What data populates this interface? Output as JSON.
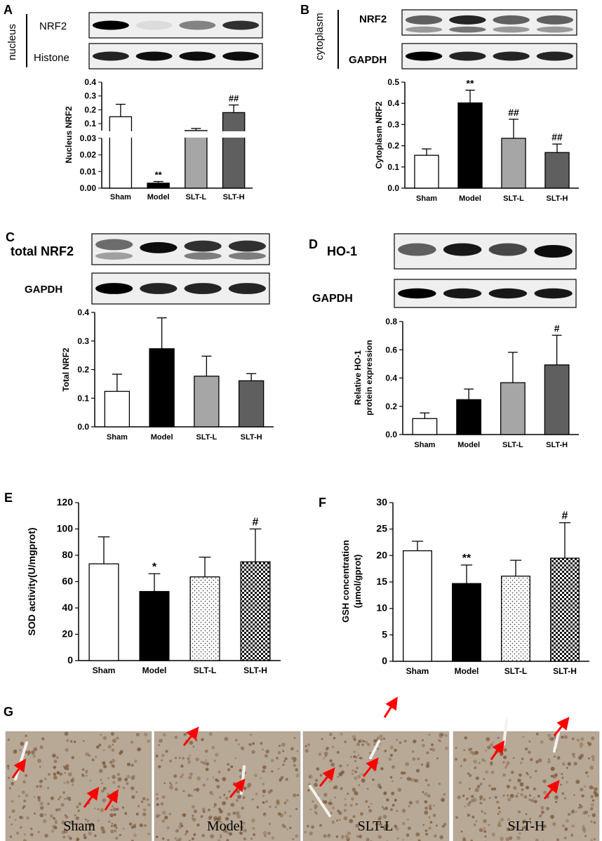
{
  "panels": {
    "A": {
      "letter": "A",
      "blot_side": "nucleus",
      "blot_labels": [
        "NRF2",
        "Histone"
      ],
      "chart_data": {
        "type": "bar",
        "categories": [
          "Sham",
          "Model",
          "SLT-L",
          "SLT-H"
        ],
        "values": [
          0.15,
          0.003,
          0.05,
          0.18
        ],
        "errors": [
          0.09,
          0.001,
          0.015,
          0.055
        ],
        "ylabel": "Nucleus NRF2",
        "axis_break": {
          "lower_ticks": [
            "0.00",
            "0.01",
            "0.02",
            "0.03"
          ],
          "upper_ticks": [
            "0.1",
            "0.2",
            "0.3",
            "0.4"
          ]
        },
        "annotations": [
          "",
          "**",
          "",
          "##"
        ]
      }
    },
    "B": {
      "letter": "B",
      "blot_side": "cytoplasm",
      "blot_labels": [
        "NRF2",
        "GAPDH"
      ],
      "chart_data": {
        "type": "bar",
        "categories": [
          "Sham",
          "Model",
          "SLT-L",
          "SLT-H"
        ],
        "values": [
          0.155,
          0.402,
          0.235,
          0.168
        ],
        "errors": [
          0.03,
          0.06,
          0.09,
          0.04
        ],
        "ylabel": "Cytoplasm NRF2",
        "ylim": [
          0,
          0.5
        ],
        "yticks": [
          "0.0",
          "0.1",
          "0.2",
          "0.3",
          "0.4",
          "0.5"
        ],
        "annotations": [
          "",
          "**",
          "##",
          "##"
        ]
      }
    },
    "C": {
      "letter": "C",
      "blot_labels": [
        "total NRF2",
        "GAPDH"
      ],
      "chart_data": {
        "type": "bar",
        "categories": [
          "Sham",
          "Model",
          "SLT-L",
          "SLT-H"
        ],
        "values": [
          0.124,
          0.273,
          0.177,
          0.161
        ],
        "errors": [
          0.06,
          0.108,
          0.07,
          0.025
        ],
        "ylabel": "Total NRF2",
        "ylim": [
          0,
          0.4
        ],
        "yticks": [
          "0.0",
          "0.1",
          "0.2",
          "0.3",
          "0.4"
        ],
        "annotations": [
          "",
          "",
          "",
          ""
        ]
      }
    },
    "D": {
      "letter": "D",
      "blot_labels": [
        "HO-1",
        "GAPDH"
      ],
      "chart_data": {
        "type": "bar",
        "categories": [
          "Sham",
          "Model",
          "SLT-L",
          "SLT-H"
        ],
        "values": [
          0.113,
          0.247,
          0.367,
          0.493
        ],
        "errors": [
          0.04,
          0.075,
          0.215,
          0.21
        ],
        "ylabel": "Relative HO-1 protein expression",
        "ylim": [
          0,
          0.8
        ],
        "yticks": [
          "0.0",
          "0.2",
          "0.4",
          "0.6",
          "0.8"
        ],
        "annotations": [
          "",
          "",
          "",
          "#"
        ]
      }
    },
    "E": {
      "letter": "E",
      "chart_data": {
        "type": "bar",
        "categories": [
          "Sham",
          "Model",
          "SLT-L",
          "SLT-H"
        ],
        "values": [
          73.5,
          52.5,
          63.6,
          75
        ],
        "errors": [
          20.5,
          13.5,
          15,
          25
        ],
        "ylabel": "SOD activity(U/mgprot)",
        "ylim": [
          0,
          120
        ],
        "yticks": [
          "0",
          "20",
          "40",
          "60",
          "80",
          "100",
          "120"
        ],
        "annotations": [
          "",
          "*",
          "",
          "#"
        ]
      }
    },
    "F": {
      "letter": "F",
      "chart_data": {
        "type": "bar",
        "categories": [
          "Sham",
          "Model",
          "SLT-L",
          "SLT-H"
        ],
        "values": [
          20.9,
          14.7,
          16.1,
          19.5
        ],
        "errors": [
          1.8,
          3.5,
          3.0,
          6.7
        ],
        "ylabel": "GSH concentration (μmol/gprot)",
        "ylim": [
          0,
          30
        ],
        "yticks": [
          "0",
          "5",
          "10",
          "15",
          "20",
          "25",
          "30"
        ],
        "annotations": [
          "",
          "**",
          "",
          "#"
        ]
      }
    },
    "G": {
      "letter": "G",
      "captions": [
        "Sham",
        "Model",
        "SLT-L",
        "SLT-H"
      ]
    }
  },
  "colors": {
    "sham": "#ffffff",
    "model": "#000000",
    "slt_l": "#a6a6a6",
    "slt_h": "#5f5f5f",
    "arrow": "#ff0000",
    "tissue": "#b8a896"
  }
}
